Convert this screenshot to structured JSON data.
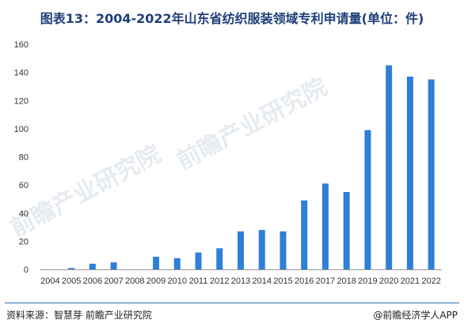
{
  "title": "图表13：2004-2022年山东省纺织服装领域专利申请量(单位：件)",
  "footer": {
    "source": "资料来源：智慧芽 前瞻产业研究院",
    "credit": "@前瞻经济学人APP"
  },
  "watermark": "前瞻产业研究院",
  "colors": {
    "bar": "#2e7fd9",
    "axis": "#999999",
    "title": "#1f3f7a",
    "rule": "#2b6cb0"
  },
  "chart_data": {
    "type": "bar",
    "categories": [
      "2004",
      "2005",
      "2006",
      "2007",
      "2008",
      "2009",
      "2010",
      "2011",
      "2012",
      "2013",
      "2014",
      "2015",
      "2016",
      "2017",
      "2018",
      "2019",
      "2020",
      "2021",
      "2022"
    ],
    "values": [
      0,
      1,
      4,
      5,
      0,
      9,
      8,
      12,
      15,
      27,
      28,
      27,
      49,
      61,
      55,
      99,
      145,
      137,
      135
    ],
    "ylim": [
      0,
      160
    ],
    "yticks": [
      0,
      20,
      40,
      60,
      80,
      100,
      120,
      140,
      160
    ],
    "grid": false,
    "legend": "none"
  }
}
